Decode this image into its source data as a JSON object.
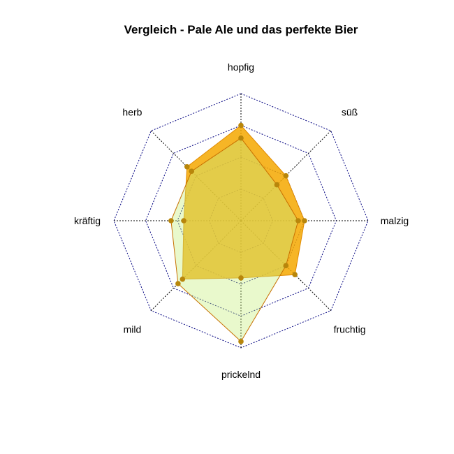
{
  "chart_data": {
    "type": "radar",
    "title": "Vergleich - Pale Ale und das perfekte Bier",
    "axes": [
      "hopfig",
      "süß",
      "malzig",
      "fruchtig",
      "prickelnd",
      "mild",
      "kräftig",
      "herb"
    ],
    "rmax": 1.0,
    "grid_levels": 4,
    "series": [
      {
        "values": [
          0.75,
          0.5,
          0.5,
          0.6,
          0.45,
          0.65,
          0.45,
          0.6
        ],
        "fill": "#f5a800",
        "stroke": "#e08a00",
        "opacity": 0.85
      },
      {
        "values": [
          0.65,
          0.4,
          0.45,
          0.5,
          0.95,
          0.7,
          0.55,
          0.55
        ],
        "fill": "#c8f080",
        "stroke": "#c87000",
        "opacity": 0.4
      }
    ],
    "point_color": "#b8860b",
    "grid_color": "#000080"
  }
}
